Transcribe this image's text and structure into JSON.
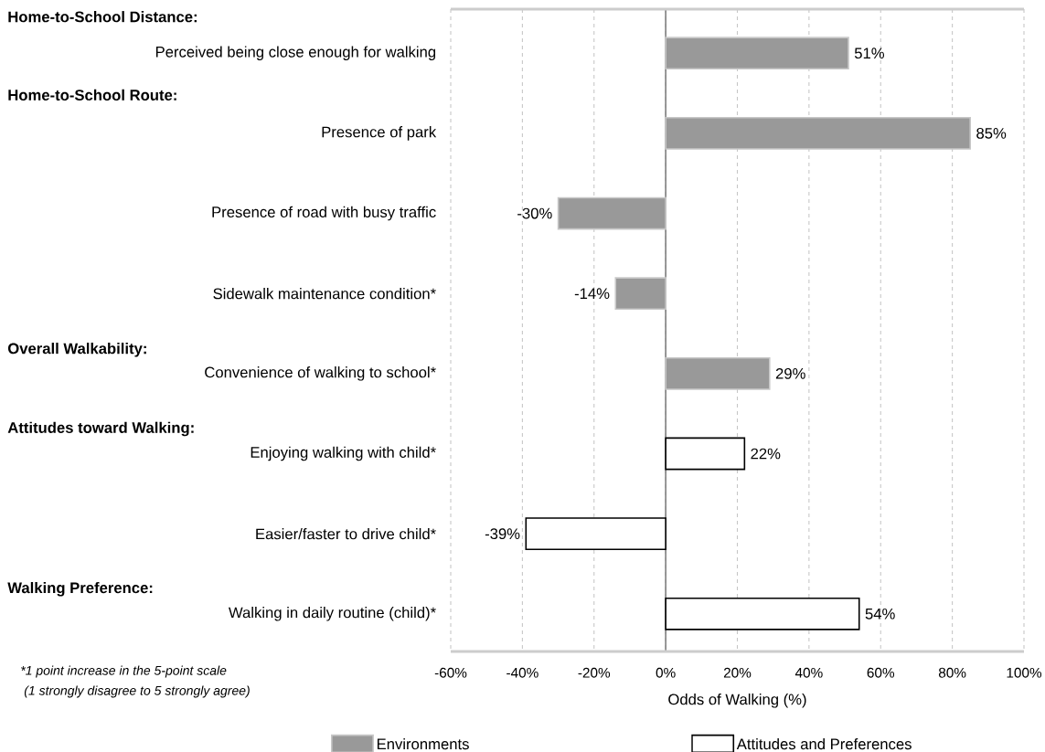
{
  "chart_data": {
    "type": "bar",
    "orientation": "horizontal",
    "categories": [
      "Perceived being close enough for walking",
      "Presence of park",
      "Presence of road with busy traffic",
      "Sidewalk maintenance condition*",
      "Convenience of walking to school*",
      "Enjoying walking with child*",
      "Easier/faster to drive child*",
      "Walking in daily routine (child)*"
    ],
    "series": [
      {
        "name": "Environments",
        "color": "#999999",
        "values": [
          51,
          85,
          -30,
          -14,
          29,
          null,
          null,
          null
        ],
        "value_labels": [
          "51%",
          "85%",
          "-30%",
          "-14%",
          "29%",
          null,
          null,
          null
        ]
      },
      {
        "name": "Attitudes and Preferences",
        "color": "#ffffff",
        "values": [
          null,
          null,
          null,
          null,
          null,
          22,
          -39,
          54
        ],
        "value_labels": [
          null,
          null,
          null,
          null,
          null,
          "22%",
          "-39%",
          "54%"
        ]
      }
    ],
    "xlabel": "Odds of Walking (%)",
    "xlim": [
      -60,
      100
    ],
    "xticks": [
      {
        "value": -60,
        "label": "-60%"
      },
      {
        "value": -40,
        "label": "-40%"
      },
      {
        "value": -20,
        "label": "-20%"
      },
      {
        "value": 0,
        "label": "0%"
      },
      {
        "value": 20,
        "label": "20%"
      },
      {
        "value": 40,
        "label": "40%"
      },
      {
        "value": 60,
        "label": "60%"
      },
      {
        "value": 80,
        "label": "80%"
      },
      {
        "value": 100,
        "label": "100%"
      }
    ],
    "annotations": [
      "Home-to-School Distance:",
      "Home-to-School Route:",
      "Overall Walkability:",
      "Attitudes toward Walking:",
      "Walking Preference:",
      "*1 point increase in the 5-point scale",
      "(1 strongly disagree to 5 strongly agree)"
    ],
    "grid": "x",
    "legend": "bottom"
  }
}
